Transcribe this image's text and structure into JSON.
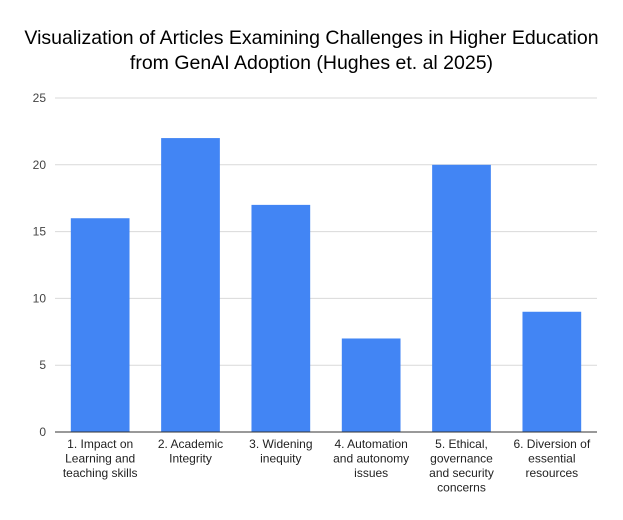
{
  "chart_data": {
    "type": "bar",
    "title_lines": [
      "Visualization of Articles Examining Challenges in Higher Education",
      "from GenAI Adoption (Hughes et. al 2025)"
    ],
    "xlabel": "",
    "ylabel": "",
    "ylim": [
      0,
      25
    ],
    "yticks": [
      "0",
      "5",
      "10",
      "15",
      "20",
      "25"
    ],
    "grid": true,
    "legend": "none",
    "bar_color": "#4285f4",
    "categories": [
      [
        "1. Impact on",
        "Learning and",
        "teaching skills"
      ],
      [
        "2. Academic",
        "Integrity"
      ],
      [
        "3. Widening",
        "inequity"
      ],
      [
        "4. Automation",
        "and autonomy",
        "issues"
      ],
      [
        "5. Ethical,",
        "governance",
        "and security",
        "concerns"
      ],
      [
        "6. Diversion of",
        "essential",
        "resources"
      ]
    ],
    "values": [
      16,
      22,
      17,
      7,
      20,
      9
    ]
  }
}
